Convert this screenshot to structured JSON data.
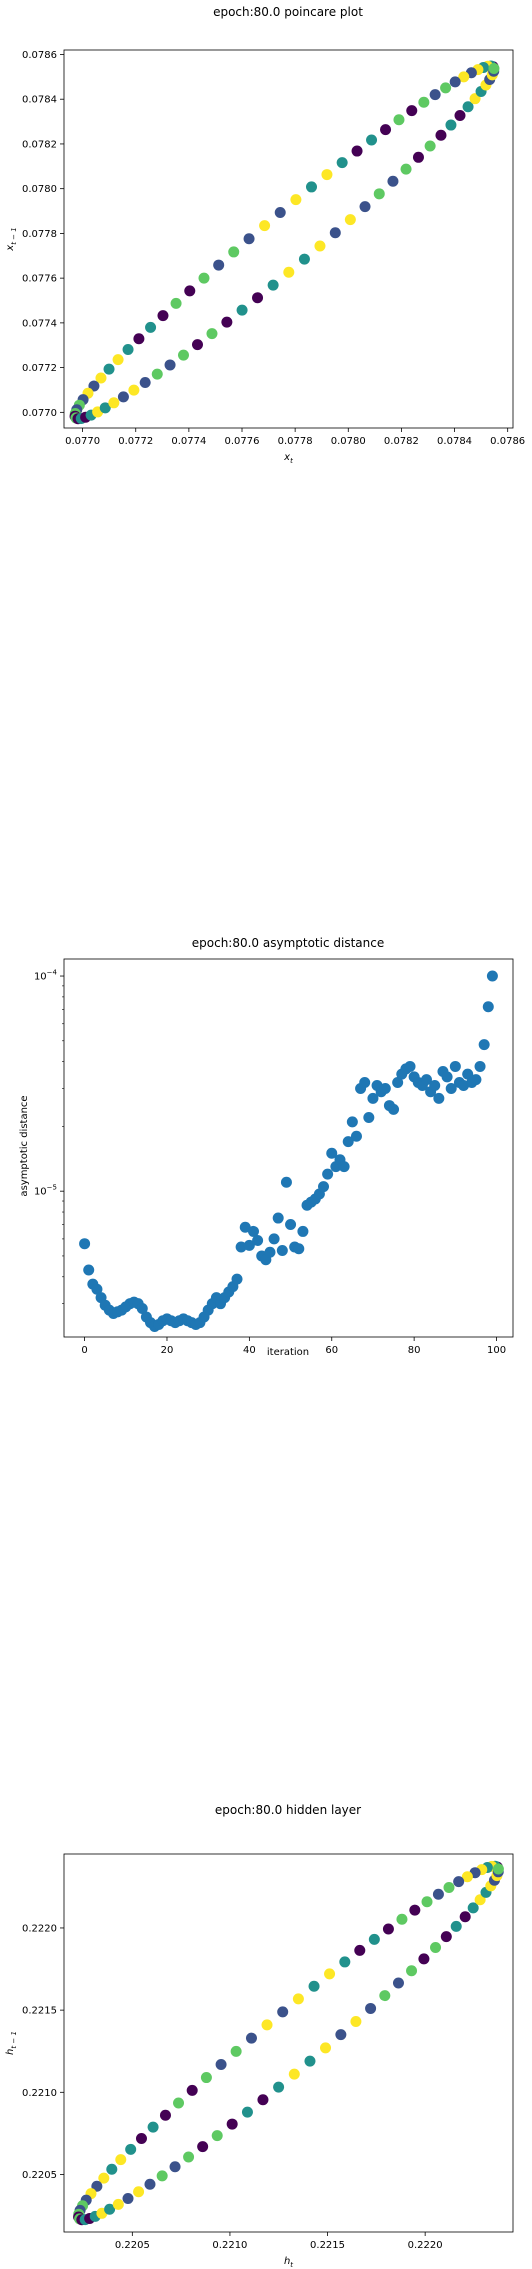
{
  "figure": {
    "chart_data": [
      {
        "type": "scatter",
        "title": "epoch:80.0 poincare plot",
        "xlabel_base": "x",
        "xlabel_sub": "t",
        "ylabel_base": "x",
        "ylabel_sub": "t − 1",
        "xlim": [
          0.07693,
          0.07862
        ],
        "ylim": [
          0.07693,
          0.07862
        ],
        "xticks": [
          0.077,
          0.0772,
          0.0774,
          0.0776,
          0.0778,
          0.078,
          0.0782,
          0.0784,
          0.0786
        ],
        "yticks": [
          0.077,
          0.0772,
          0.0774,
          0.0776,
          0.0778,
          0.078,
          0.0782,
          0.0784,
          0.0786
        ],
        "tick_decimals": 4,
        "colormap": [
          "#440154",
          "#3b528b",
          "#21918c",
          "#5ec962",
          "#fde725"
        ],
        "ellipse_center": [
          0.07776,
          0.07776
        ],
        "ellipse_major_halfwidth": 0.000785,
        "ellipse_minor_halfwidth": 7.5e-05,
        "points": 84
      },
      {
        "type": "scatter",
        "title": "epoch:80.0 asymptotic distance",
        "xlabel": "iteration",
        "ylabel": "asymptotic distance",
        "xlim": [
          -5,
          104
        ],
        "ylim_log": [
          2.1e-06,
          0.00012
        ],
        "yscale": "log",
        "xticks": [
          0,
          20,
          40,
          60,
          80,
          100
        ],
        "ymajor_ticks": [
          {
            "value": 1e-05,
            "label_base": "10",
            "label_exp": "−5"
          },
          {
            "value": 0.0001,
            "label_base": "10",
            "label_exp": "−4"
          }
        ],
        "color": "#1f77b4",
        "x": [
          0,
          1,
          2,
          3,
          4,
          5,
          6,
          7,
          8,
          9,
          10,
          11,
          12,
          13,
          14,
          15,
          16,
          17,
          18,
          19,
          20,
          21,
          22,
          23,
          24,
          25,
          26,
          27,
          28,
          29,
          30,
          31,
          32,
          33,
          34,
          35,
          36,
          37,
          38,
          39,
          40,
          41,
          42,
          43,
          44,
          45,
          46,
          47,
          48,
          49,
          50,
          51,
          52,
          53,
          54,
          55,
          56,
          57,
          58,
          59,
          60,
          61,
          62,
          63,
          64,
          65,
          66,
          67,
          68,
          69,
          70,
          71,
          72,
          73,
          74,
          75,
          76,
          77,
          78,
          79,
          80,
          81,
          82,
          83,
          84,
          85,
          86,
          87,
          88,
          89,
          90,
          91,
          92,
          93,
          94,
          95,
          96,
          97,
          98,
          99
        ],
        "y": [
          5.7e-06,
          4.3e-06,
          3.7e-06,
          3.5e-06,
          3.2e-06,
          2.95e-06,
          2.8e-06,
          2.7e-06,
          2.75e-06,
          2.8e-06,
          2.9e-06,
          3e-06,
          3.05e-06,
          3e-06,
          2.85e-06,
          2.6e-06,
          2.45e-06,
          2.35e-06,
          2.4e-06,
          2.5e-06,
          2.55e-06,
          2.5e-06,
          2.45e-06,
          2.5e-06,
          2.55e-06,
          2.5e-06,
          2.45e-06,
          2.4e-06,
          2.45e-06,
          2.6e-06,
          2.8e-06,
          3e-06,
          3.2e-06,
          3e-06,
          3.2e-06,
          3.4e-06,
          3.6e-06,
          3.9e-06,
          5.5e-06,
          6.8e-06,
          5.6e-06,
          6.5e-06,
          5.9e-06,
          5e-06,
          4.8e-06,
          5.2e-06,
          6e-06,
          7.5e-06,
          5.3e-06,
          1.1e-05,
          7e-06,
          5.5e-06,
          5.4e-06,
          6.5e-06,
          8.6e-06,
          8.9e-06,
          9.2e-06,
          9.7e-06,
          1.05e-05,
          1.2e-05,
          1.5e-05,
          1.3e-05,
          1.4e-05,
          1.3e-05,
          1.7e-05,
          2.1e-05,
          1.8e-05,
          3e-05,
          3.2e-05,
          2.2e-05,
          2.7e-05,
          3.1e-05,
          2.9e-05,
          3e-05,
          2.5e-05,
          2.4e-05,
          3.2e-05,
          3.5e-05,
          3.7e-05,
          3.8e-05,
          3.4e-05,
          3.2e-05,
          3.1e-05,
          3.3e-05,
          2.9e-05,
          3.1e-05,
          2.7e-05,
          3.6e-05,
          3.4e-05,
          3e-05,
          3.8e-05,
          3.2e-05,
          3.1e-05,
          3.5e-05,
          3.2e-05,
          3.3e-05,
          3.8e-05,
          4.8e-05,
          7.2e-05,
          0.0001
        ]
      },
      {
        "type": "scatter",
        "title": "epoch:80.0 hidden layer",
        "xlabel_base": "h",
        "xlabel_sub": "t",
        "ylabel_base": "h",
        "ylabel_sub": "t − 1",
        "xlim": [
          0.22015,
          0.22245
        ],
        "ylim": [
          0.22015,
          0.22245
        ],
        "xticks": [
          0.2205,
          0.221,
          0.2215,
          0.222
        ],
        "yticks": [
          0.2205,
          0.221,
          0.2215,
          0.222
        ],
        "tick_decimals": 4,
        "colormap": [
          "#440154",
          "#3b528b",
          "#21918c",
          "#5ec962",
          "#fde725"
        ],
        "ellipse_center": [
          0.2213,
          0.2213
        ],
        "ellipse_major_halfwidth": 0.00107,
        "ellipse_minor_halfwidth": 0.00011,
        "points": 84
      }
    ]
  }
}
